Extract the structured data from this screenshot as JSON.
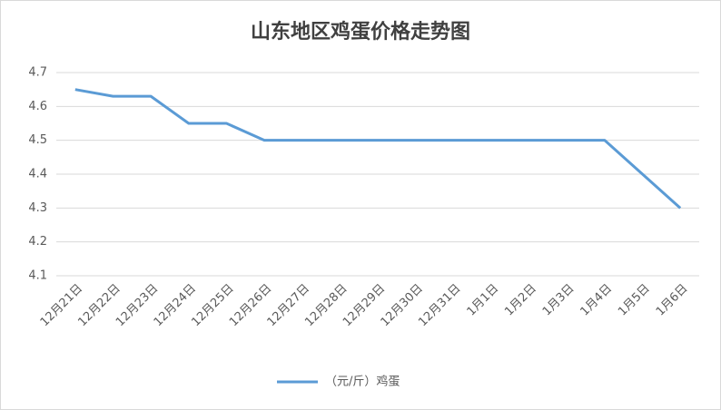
{
  "chart_data": {
    "type": "line",
    "title": "山东地区鸡蛋价格走势图",
    "categories": [
      "12月21日",
      "12月22日",
      "12月23日",
      "12月24日",
      "12月25日",
      "12月26日",
      "12月27日",
      "12月28日",
      "12月29日",
      "12月30日",
      "12月31日",
      "1月1日",
      "1月2日",
      "1月3日",
      "1月4日",
      "1月5日",
      "1月6日"
    ],
    "series": [
      {
        "name": "（元/斤）鸡蛋",
        "color": "#5b9bd5",
        "values": [
          4.65,
          4.63,
          4.63,
          4.55,
          4.55,
          4.5,
          4.5,
          4.5,
          4.5,
          4.5,
          4.5,
          4.5,
          4.5,
          4.5,
          4.5,
          4.4,
          4.3
        ]
      }
    ],
    "ylim": [
      4.1,
      4.7
    ],
    "yticks": [
      4.1,
      4.2,
      4.3,
      4.4,
      4.5,
      4.6,
      4.7
    ],
    "grid": true,
    "legend": "bottom"
  }
}
